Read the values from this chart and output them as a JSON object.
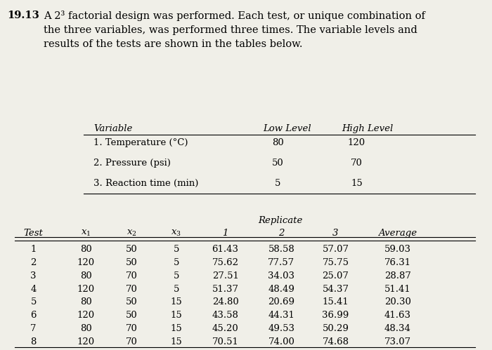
{
  "title_number": "19.13",
  "title_text": "A 2³ factorial design was performed. Each test, or unique combination of\nthe three variables, was performed three times. The variable levels and\nresults of the tests are shown in the tables below.",
  "variables": [
    {
      "name": "1. Temperature (°C)",
      "low": "80",
      "high": "120"
    },
    {
      "name": "2. Pressure (psi)",
      "low": "50",
      "high": "70"
    },
    {
      "name": "3. Reaction time (min)",
      "low": "5",
      "high": "15"
    }
  ],
  "replicate_label": "Replicate",
  "rows": [
    [
      1,
      80,
      50,
      5,
      61.43,
      58.58,
      57.07,
      59.03
    ],
    [
      2,
      120,
      50,
      5,
      75.62,
      77.57,
      75.75,
      76.31
    ],
    [
      3,
      80,
      70,
      5,
      27.51,
      34.03,
      25.07,
      28.87
    ],
    [
      4,
      120,
      70,
      5,
      51.37,
      48.49,
      54.37,
      51.41
    ],
    [
      5,
      80,
      50,
      15,
      24.8,
      20.69,
      15.41,
      20.3
    ],
    [
      6,
      120,
      50,
      15,
      43.58,
      44.31,
      36.99,
      41.63
    ],
    [
      7,
      80,
      70,
      15,
      45.2,
      49.53,
      50.29,
      48.34
    ],
    [
      8,
      120,
      70,
      15,
      70.51,
      74.0,
      74.68,
      73.07
    ]
  ],
  "bg_color": "#f0efe8",
  "text_color": "#000000",
  "font_size": 9.5,
  "title_font_size": 10.5
}
